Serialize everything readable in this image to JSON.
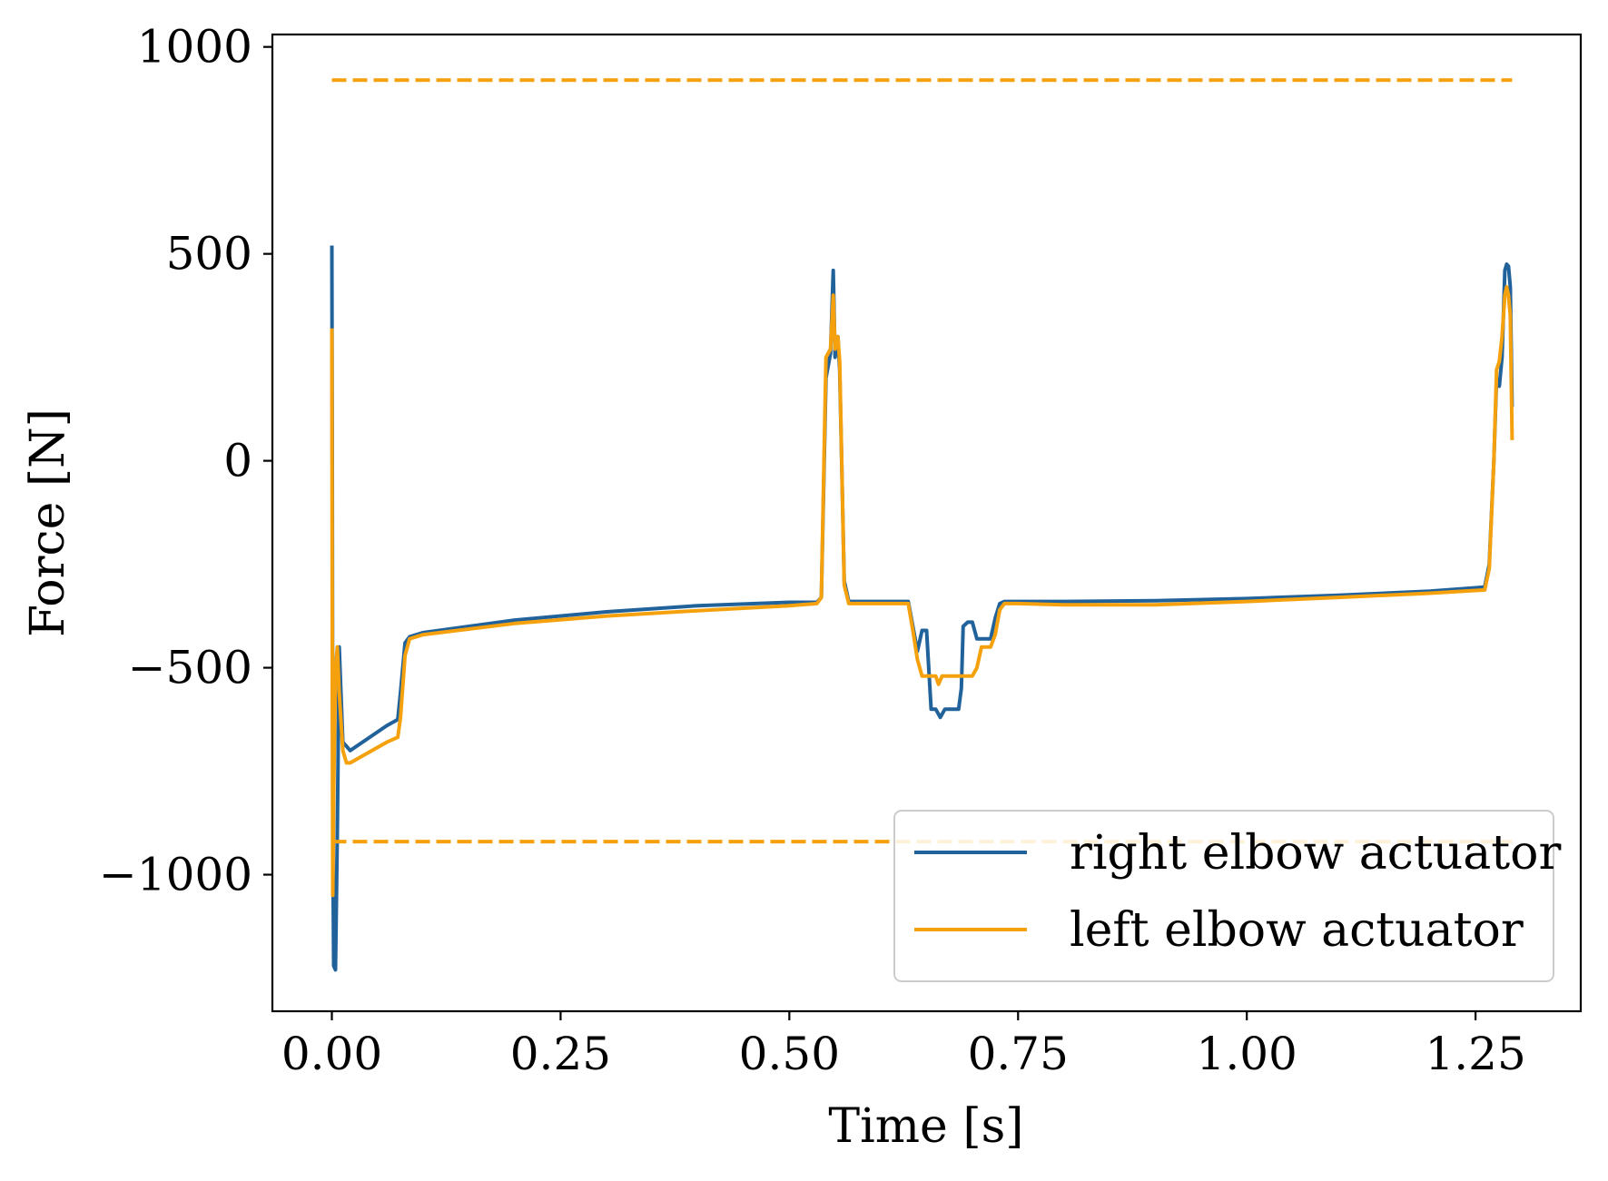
{
  "chart_data": {
    "type": "line",
    "title": "",
    "xlabel": "Time [s]",
    "ylabel": "Force [N]",
    "xlim": [
      -0.065,
      1.365
    ],
    "ylim": [
      -1330,
      1030
    ],
    "xticks": [
      0.0,
      0.25,
      0.5,
      0.75,
      1.0,
      1.25
    ],
    "xtick_labels": [
      "0.00",
      "0.25",
      "0.50",
      "0.75",
      "1.00",
      "1.25"
    ],
    "yticks": [
      -1000,
      -500,
      0,
      500,
      1000
    ],
    "ytick_labels": [
      "−1000",
      "−500",
      "0",
      "500",
      "1000"
    ],
    "grid": false,
    "legend": {
      "position": "lower-right",
      "entries": [
        "right elbow actuator",
        "left elbow actuator"
      ]
    },
    "colors": {
      "right": "#21629b",
      "left": "#f5a10d"
    },
    "series": [
      {
        "name": "right elbow actuator",
        "color": "#21629b",
        "style": "solid",
        "x": [
          0.0,
          0.0005,
          0.001,
          0.002,
          0.004,
          0.006,
          0.008,
          0.012,
          0.02,
          0.04,
          0.06,
          0.072,
          0.075,
          0.08,
          0.085,
          0.1,
          0.2,
          0.3,
          0.4,
          0.5,
          0.53,
          0.535,
          0.54,
          0.545,
          0.548,
          0.55,
          0.553,
          0.555,
          0.56,
          0.565,
          0.58,
          0.6,
          0.63,
          0.635,
          0.64,
          0.645,
          0.65,
          0.655,
          0.66,
          0.665,
          0.67,
          0.675,
          0.685,
          0.688,
          0.69,
          0.695,
          0.7,
          0.705,
          0.72,
          0.725,
          0.73,
          0.735,
          0.75,
          0.8,
          0.9,
          1.0,
          1.1,
          1.2,
          1.26,
          1.265,
          1.27,
          1.273,
          1.276,
          1.279,
          1.282,
          1.284,
          1.286,
          1.288,
          1.29
        ],
        "y": [
          520,
          0,
          -900,
          -1220,
          -1230,
          -900,
          -450,
          -680,
          -700,
          -670,
          -640,
          -625,
          -560,
          -440,
          -425,
          -415,
          -385,
          -365,
          -350,
          -342,
          -342,
          -330,
          200,
          260,
          460,
          250,
          300,
          220,
          -290,
          -340,
          -340,
          -340,
          -340,
          -400,
          -460,
          -410,
          -410,
          -600,
          -600,
          -620,
          -600,
          -600,
          -600,
          -550,
          -400,
          -390,
          -390,
          -430,
          -430,
          -380,
          -345,
          -340,
          -340,
          -340,
          -338,
          -333,
          -325,
          -315,
          -305,
          -250,
          0,
          200,
          180,
          250,
          460,
          475,
          470,
          420,
          130
        ]
      },
      {
        "name": "left elbow actuator",
        "color": "#f5a10d",
        "style": "solid",
        "x": [
          0.0,
          0.0005,
          0.001,
          0.002,
          0.004,
          0.006,
          0.008,
          0.012,
          0.016,
          0.02,
          0.04,
          0.06,
          0.072,
          0.075,
          0.08,
          0.085,
          0.1,
          0.2,
          0.3,
          0.4,
          0.5,
          0.53,
          0.535,
          0.54,
          0.545,
          0.548,
          0.55,
          0.553,
          0.555,
          0.56,
          0.565,
          0.58,
          0.6,
          0.63,
          0.635,
          0.64,
          0.645,
          0.65,
          0.66,
          0.663,
          0.667,
          0.67,
          0.7,
          0.705,
          0.71,
          0.72,
          0.725,
          0.73,
          0.735,
          0.75,
          0.8,
          0.9,
          1.0,
          1.1,
          1.2,
          1.26,
          1.265,
          1.27,
          1.273,
          1.276,
          1.279,
          1.282,
          1.284,
          1.286,
          1.288,
          1.29
        ],
        "y": [
          320,
          -500,
          -1050,
          -800,
          -500,
          -450,
          -560,
          -700,
          -730,
          -730,
          -705,
          -680,
          -668,
          -620,
          -470,
          -430,
          -420,
          -393,
          -375,
          -362,
          -350,
          -345,
          -330,
          250,
          270,
          400,
          270,
          300,
          240,
          -300,
          -345,
          -345,
          -345,
          -345,
          -410,
          -480,
          -520,
          -520,
          -520,
          -540,
          -520,
          -520,
          -520,
          -500,
          -450,
          -450,
          -420,
          -360,
          -345,
          -345,
          -348,
          -348,
          -340,
          -330,
          -320,
          -312,
          -260,
          0,
          220,
          240,
          300,
          400,
          420,
          400,
          350,
          50
        ]
      },
      {
        "name": "",
        "color": "#f5a10d",
        "style": "dashed",
        "x": [
          0.0,
          1.29
        ],
        "y": [
          920,
          920
        ]
      },
      {
        "name": "",
        "color": "#f5a10d",
        "style": "dashed",
        "x": [
          0.0,
          1.29
        ],
        "y": [
          -920,
          -920
        ]
      }
    ]
  }
}
